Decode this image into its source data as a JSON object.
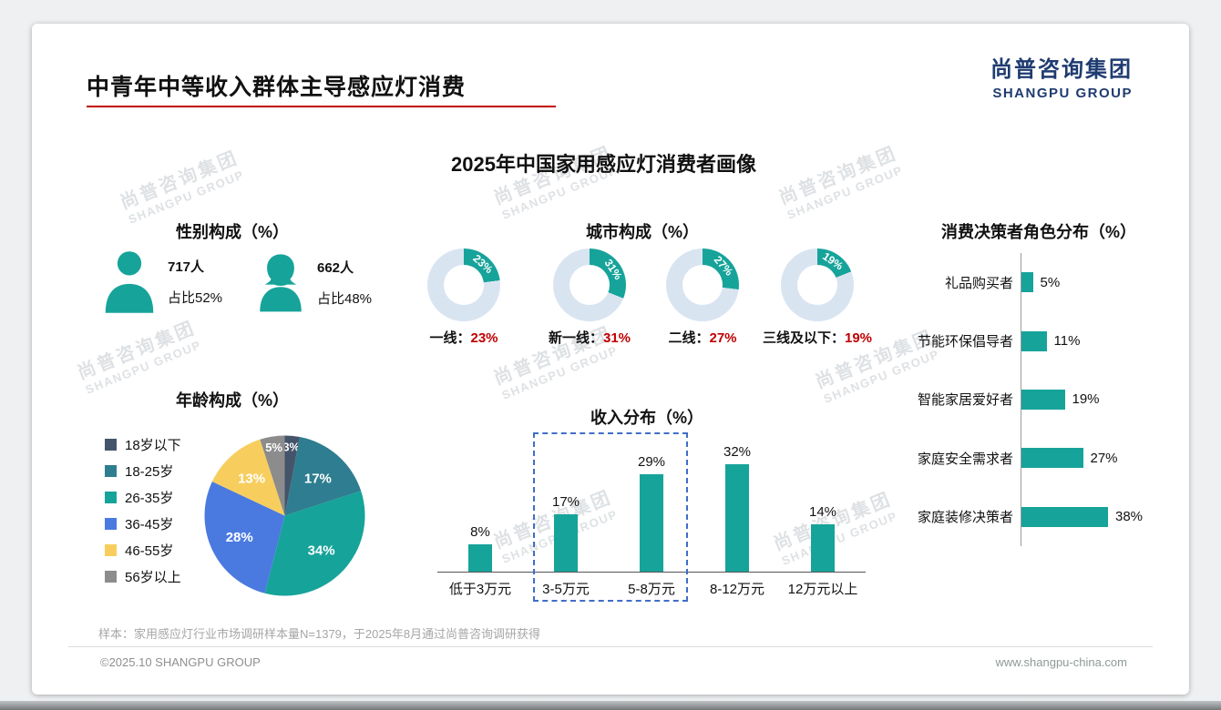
{
  "page": {
    "title": "中青年中等收入群体主导感应灯消费",
    "logo_cn": "尚普咨询集团",
    "logo_en": "SHANGPU GROUP",
    "main_title": "2025年中国家用感应灯消费者画像",
    "footnote": "样本：家用感应灯行业市场调研样本量N=1379，于2025年8月通过尚普咨询调研获得",
    "copyright": "©2025.10 SHANGPU GROUP",
    "website": "www.shangpu-china.com",
    "watermark_cn": "尚普咨询集团",
    "watermark_en": "SHANGPU GROUP"
  },
  "colors": {
    "teal": "#16A39A",
    "donut_rest": "#D9E4F1",
    "red": "#C00000",
    "navy": "#1F3B70"
  },
  "chart_data": [
    {
      "id": "gender",
      "type": "table",
      "title": "性别构成（%）",
      "rows": [
        {
          "gender": "男",
          "count": "717人",
          "share": "占比52%"
        },
        {
          "gender": "女",
          "count": "662人",
          "share": "占比48%"
        }
      ]
    },
    {
      "id": "city",
      "type": "pie",
      "variant": "donut",
      "title": "城市构成（%）",
      "items": [
        {
          "label": "一线",
          "value": 23
        },
        {
          "label": "新一线",
          "value": 31
        },
        {
          "label": "二线",
          "value": 27
        },
        {
          "label": "三线及以下",
          "value": 19
        }
      ]
    },
    {
      "id": "roles",
      "type": "bar",
      "orientation": "horizontal",
      "title": "消费决策者角色分布（%）",
      "categories": [
        "礼品购买者",
        "节能环保倡导者",
        "智能家居爱好者",
        "家庭安全需求者",
        "家庭装修决策者"
      ],
      "values": [
        5,
        11,
        19,
        27,
        38
      ],
      "unit": "%"
    },
    {
      "id": "age",
      "type": "pie",
      "title": "年龄构成（%）",
      "categories": [
        "18岁以下",
        "18-25岁",
        "26-35岁",
        "36-45岁",
        "46-55岁",
        "56岁以上"
      ],
      "values": [
        3,
        17,
        34,
        28,
        13,
        5
      ],
      "colors": [
        "#44546A",
        "#2E7D90",
        "#16A39A",
        "#4A7AE0",
        "#F7CE5E",
        "#8C8C8C"
      ],
      "legend_position": "left"
    },
    {
      "id": "income",
      "type": "bar",
      "orientation": "vertical",
      "title": "收入分布（%）",
      "categories": [
        "低于3万元",
        "3-5万元",
        "5-8万元",
        "8-12万元",
        "12万元以上"
      ],
      "values": [
        8,
        17,
        29,
        32,
        14
      ],
      "unit": "%",
      "highlight_categories": [
        "3-5万元",
        "5-8万元"
      ]
    }
  ]
}
